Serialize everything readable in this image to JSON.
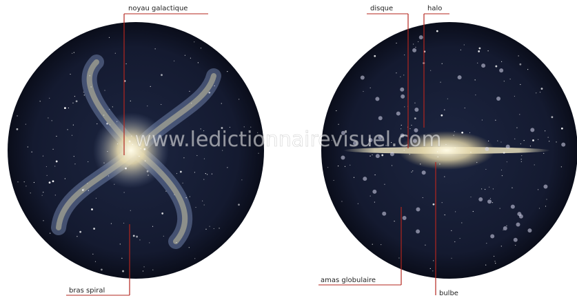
{
  "labels": {
    "galactic_core": "noyau galactique",
    "spiral_arm": "bras spiral",
    "disk": "disque",
    "halo": "halo",
    "globular_cluster": "amas globulaire",
    "bulge": "bulbe"
  },
  "watermark": "www.ledictionnairevisuel.com"
}
